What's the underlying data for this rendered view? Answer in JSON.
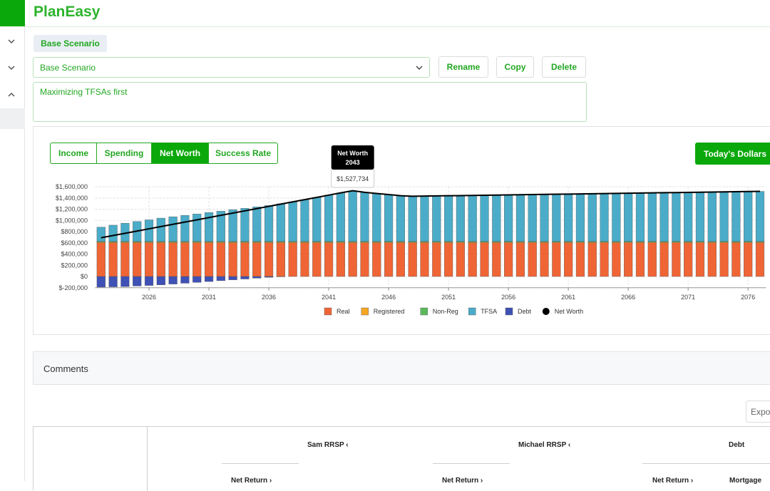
{
  "app": {
    "title": "PlanEasy"
  },
  "scenario": {
    "tag": "Base Scenario",
    "select": "Base Scenario",
    "buttons": [
      "Rename",
      "Copy",
      "Delete"
    ],
    "description": "Maximizing TFSAs first"
  },
  "tabs": [
    "Income",
    "Spending",
    "Net Worth",
    "Success Rate"
  ],
  "active_tab": 2,
  "dollars_button": "Today's Dollars",
  "comments": "Comments",
  "export": "Export",
  "table": {
    "headers": [
      "Sam RRSP",
      "Michael RRSP",
      "Debt"
    ],
    "subheaders": [
      "Net Return",
      "Net Return",
      "Net Return",
      "Mortgage"
    ]
  },
  "chart_data": {
    "type": "bar",
    "x": [
      2022,
      2023,
      2024,
      2025,
      2026,
      2027,
      2028,
      2029,
      2030,
      2031,
      2032,
      2033,
      2034,
      2035,
      2036,
      2037,
      2038,
      2039,
      2040,
      2041,
      2042,
      2043,
      2044,
      2045,
      2046,
      2047,
      2048,
      2049,
      2050,
      2051,
      2052,
      2053,
      2054,
      2055,
      2056,
      2057,
      2058,
      2059,
      2060,
      2061,
      2062,
      2063,
      2064,
      2065,
      2066,
      2067,
      2068,
      2069,
      2070,
      2071,
      2072,
      2073,
      2074,
      2075,
      2076,
      2077
    ],
    "xlim": [
      2021.5,
      2077.5
    ],
    "xticks": [
      2026,
      2031,
      2036,
      2041,
      2046,
      2051,
      2056,
      2061,
      2066,
      2071,
      2076
    ],
    "ylim": [
      -200000,
      1600000
    ],
    "yticks": [
      {
        "value": -200000,
        "label": "$-200,000"
      },
      {
        "value": 0,
        "label": "$0"
      },
      {
        "value": 200000,
        "label": "$200,000"
      },
      {
        "value": 400000,
        "label": "$400,000"
      },
      {
        "value": 600000,
        "label": "$600,000"
      },
      {
        "value": 800000,
        "label": "$800,000"
      },
      {
        "value": 1000000,
        "label": "$1,000,000"
      },
      {
        "value": 1200000,
        "label": "$1,200,000"
      },
      {
        "value": 1400000,
        "label": "$1,400,000"
      },
      {
        "value": 1600000,
        "label": "$1,600,000"
      }
    ],
    "grid": true,
    "legend": "bottom",
    "series": [
      {
        "name": "Real",
        "color": "#ef6535",
        "type": "bar",
        "values": [
          600000,
          600000,
          600000,
          600000,
          600000,
          600000,
          600000,
          600000,
          600000,
          600000,
          600000,
          600000,
          600000,
          600000,
          600000,
          600000,
          600000,
          600000,
          600000,
          600000,
          600000,
          600000,
          600000,
          600000,
          600000,
          600000,
          600000,
          600000,
          600000,
          600000,
          600000,
          600000,
          600000,
          600000,
          600000,
          600000,
          600000,
          600000,
          600000,
          600000,
          600000,
          600000,
          600000,
          600000,
          600000,
          600000,
          600000,
          600000,
          600000,
          600000,
          600000,
          600000,
          600000,
          600000,
          600000,
          600000
        ]
      },
      {
        "name": "Registered",
        "color": "#f5a623",
        "type": "bar",
        "values": [
          15000,
          15000,
          15000,
          15000,
          15000,
          15000,
          15000,
          15000,
          15000,
          15000,
          15000,
          15000,
          15000,
          15000,
          15000,
          15000,
          15000,
          15000,
          15000,
          15000,
          15000,
          15000,
          15000,
          15000,
          15000,
          15000,
          15000,
          15000,
          15000,
          15000,
          15000,
          15000,
          15000,
          15000,
          15000,
          15000,
          15000,
          15000,
          15000,
          15000,
          15000,
          15000,
          15000,
          15000,
          15000,
          15000,
          15000,
          15000,
          15000,
          15000,
          15000,
          15000,
          15000,
          15000,
          15000,
          15000
        ]
      },
      {
        "name": "Non-Reg",
        "color": "#5cb85c",
        "type": "bar",
        "values": [
          10000,
          10000,
          10000,
          10000,
          10000,
          10000,
          10000,
          10000,
          10000,
          10000,
          10000,
          10000,
          10000,
          10000,
          10000,
          10000,
          10000,
          10000,
          10000,
          10000,
          10000,
          10000,
          10000,
          10000,
          10000,
          10000,
          10000,
          10000,
          10000,
          10000,
          10000,
          10000,
          10000,
          10000,
          10000,
          10000,
          10000,
          10000,
          10000,
          10000,
          10000,
          10000,
          10000,
          10000,
          10000,
          10000,
          10000,
          10000,
          10000,
          10000,
          10000,
          10000,
          10000,
          10000,
          10000,
          10000
        ]
      },
      {
        "name": "TFSA",
        "color": "#4aacc8",
        "type": "bar",
        "values": [
          255000,
          290000,
          325000,
          355000,
          385000,
          415000,
          440000,
          465000,
          490000,
          515000,
          540000,
          565000,
          590000,
          615000,
          640000,
          670000,
          705000,
          745000,
          785000,
          825000,
          865000,
          902734,
          875000,
          855000,
          835000,
          815000,
          805000,
          808000,
          811000,
          814000,
          817000,
          820000,
          823000,
          826000,
          829000,
          832000,
          835000,
          838000,
          841000,
          844000,
          847000,
          850000,
          853000,
          856000,
          859000,
          862000,
          865000,
          868000,
          871000,
          874000,
          877000,
          880000,
          883000,
          886000,
          889000,
          892000
        ]
      },
      {
        "name": "Debt",
        "color": "#3f51b5",
        "type": "bar",
        "values": [
          -190000,
          -185000,
          -180000,
          -170000,
          -160000,
          -150000,
          -135000,
          -120000,
          -105000,
          -90000,
          -75000,
          -60000,
          -45000,
          -30000,
          -15000,
          -5000,
          0,
          0,
          0,
          0,
          0,
          0,
          0,
          0,
          0,
          0,
          0,
          0,
          0,
          0,
          0,
          0,
          0,
          0,
          0,
          0,
          0,
          0,
          0,
          0,
          0,
          0,
          0,
          0,
          0,
          0,
          0,
          0,
          0,
          0,
          0,
          0,
          0,
          0,
          0,
          0
        ]
      },
      {
        "name": "Net Worth",
        "color": "#000000",
        "type": "line",
        "values": [
          690000,
          730000,
          770000,
          810000,
          850000,
          890000,
          930000,
          970000,
          1010000,
          1050000,
          1090000,
          1130000,
          1170000,
          1210000,
          1250000,
          1290000,
          1330000,
          1370000,
          1410000,
          1450000,
          1490000,
          1527734,
          1500000,
          1480000,
          1460000,
          1440000,
          1430000,
          1433000,
          1436000,
          1439000,
          1442000,
          1445000,
          1448000,
          1451000,
          1454000,
          1457000,
          1460000,
          1463000,
          1466000,
          1469000,
          1472000,
          1475000,
          1478000,
          1481000,
          1484000,
          1487000,
          1490000,
          1493000,
          1496000,
          1499000,
          1502000,
          1505000,
          1508000,
          1511000,
          1514000,
          1517000
        ],
        "value_labels": [
          null,
          null,
          null,
          null,
          null,
          null,
          null,
          null,
          null,
          null,
          null,
          null,
          null,
          null,
          null,
          null,
          null,
          null,
          null,
          null,
          null,
          "$1,527,734",
          null,
          null,
          null,
          null,
          null,
          null,
          null,
          null,
          null,
          null,
          null,
          null,
          null,
          null,
          null,
          null,
          null,
          null,
          null,
          null,
          null,
          null,
          null,
          null,
          null,
          null,
          null,
          null,
          null,
          null,
          null,
          null,
          null,
          null
        ]
      }
    ],
    "tooltip_index": 21
  }
}
